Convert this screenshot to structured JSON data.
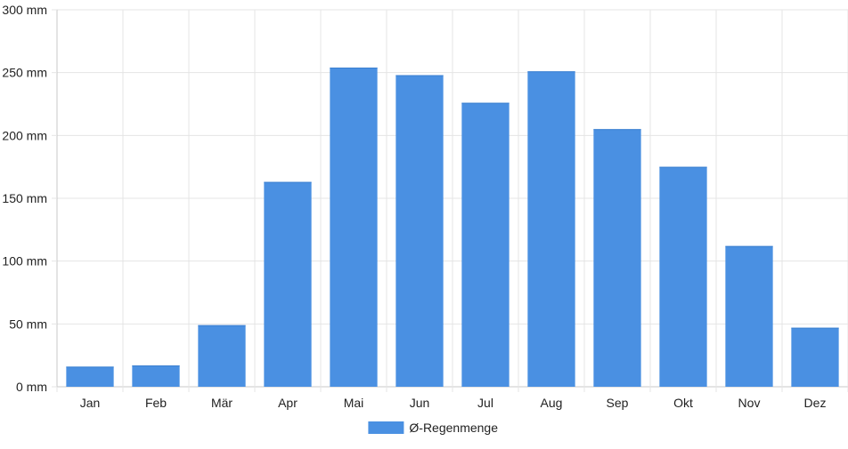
{
  "chart_data": {
    "type": "bar",
    "title": "",
    "xlabel": "",
    "ylabel": "",
    "ylim": [
      0,
      300
    ],
    "y_ticks": [
      0,
      50,
      100,
      150,
      200,
      250,
      300
    ],
    "y_tick_labels": [
      "0 mm",
      "50 mm",
      "100 mm",
      "150 mm",
      "200 mm",
      "250 mm",
      "300 mm"
    ],
    "categories": [
      "Jan",
      "Feb",
      "Mär",
      "Apr",
      "Mai",
      "Jun",
      "Jul",
      "Aug",
      "Sep",
      "Okt",
      "Nov",
      "Dez"
    ],
    "series": [
      {
        "name": "Ø-Regenmenge",
        "color": "#4a90e2",
        "values": [
          16,
          17,
          49,
          163,
          254,
          248,
          226,
          251,
          205,
          175,
          112,
          47
        ]
      }
    ],
    "grid": true,
    "legend_position": "bottom-center",
    "gridline_color": "#e5e5e5",
    "axis_color": "#c8c8c8",
    "text_color": "#222222"
  }
}
